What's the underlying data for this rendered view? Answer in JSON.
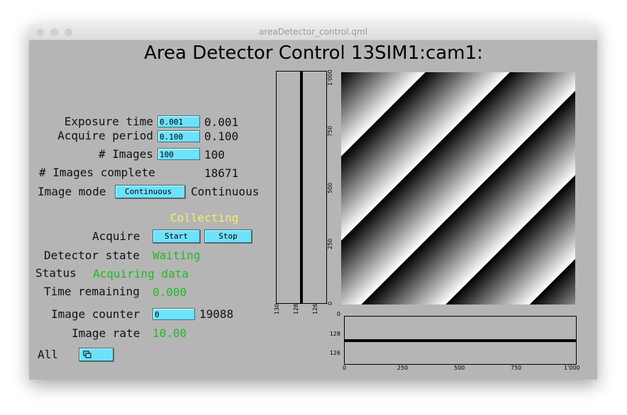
{
  "window": {
    "title": "areaDetector_control.qml"
  },
  "header": {
    "title": "Area Detector Control 13SIM1:cam1:"
  },
  "controls": {
    "exposure_time": {
      "label": "Exposure time",
      "input": "0.001",
      "readback": "0.001"
    },
    "acquire_period": {
      "label": "Acquire period",
      "input": "0.100",
      "readback": "0.100"
    },
    "num_images": {
      "label": "# Images",
      "input": "100",
      "readback": "100"
    },
    "num_images_complete": {
      "label": "# Images complete",
      "readback": "18671"
    },
    "image_mode": {
      "label": "Image mode",
      "menu": "Continuous",
      "readback": "Continuous"
    },
    "acquire_status": "Collecting",
    "acquire": {
      "label": "Acquire",
      "start": "Start",
      "stop": "Stop"
    },
    "detector_state": {
      "label": "Detector state",
      "readback": "Waiting"
    },
    "status": {
      "label": "Status",
      "readback": "Acquiring data"
    },
    "time_remaining": {
      "label": "Time remaining",
      "readback": "0.000"
    },
    "image_counter": {
      "label": "Image counter",
      "input": "0",
      "readback": "19088"
    },
    "image_rate": {
      "label": "Image rate",
      "readback": "10.00"
    },
    "all": {
      "label": "All"
    }
  },
  "vertical_profile": {
    "value_ticks": [
      "130",
      "128",
      "126"
    ],
    "position_ticks": [
      "0",
      "250",
      "500",
      "750",
      "1'000"
    ]
  },
  "horizontal_profile": {
    "value_ticks": [
      "0",
      "128",
      "126"
    ],
    "position_ticks": [
      "0",
      "250",
      "500",
      "750",
      "1'000"
    ]
  }
}
